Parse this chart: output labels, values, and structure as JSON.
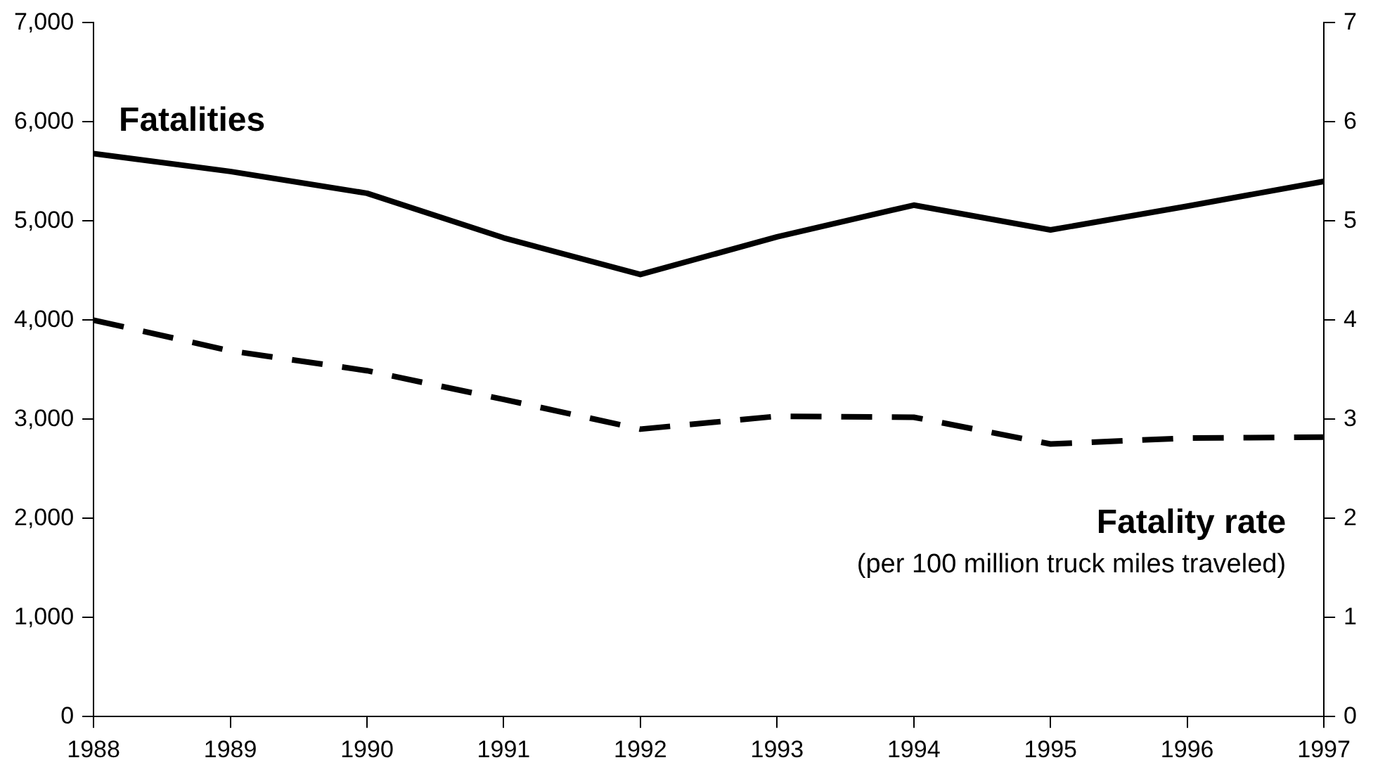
{
  "chart_data": {
    "type": "line",
    "x": [
      1988,
      1989,
      1990,
      1991,
      1992,
      1993,
      1994,
      1995,
      1996,
      1997
    ],
    "xlim": [
      1988,
      1997
    ],
    "xticks": [
      1988,
      1989,
      1990,
      1991,
      1992,
      1993,
      1994,
      1995,
      1996,
      1997
    ],
    "ylim": [
      0,
      7000
    ],
    "yticks": [
      {
        "value": 0,
        "label": "0"
      },
      {
        "value": 1000,
        "label": "1,000"
      },
      {
        "value": 2000,
        "label": "2,000"
      },
      {
        "value": 3000,
        "label": "3,000"
      },
      {
        "value": 4000,
        "label": "4,000"
      },
      {
        "value": 5000,
        "label": "5,000"
      },
      {
        "value": 6000,
        "label": "6,000"
      },
      {
        "value": 7000,
        "label": "7,000"
      }
    ],
    "y2lim": [
      0,
      7
    ],
    "y2ticks": [
      0,
      1,
      2,
      3,
      4,
      5,
      6,
      7
    ],
    "series": [
      {
        "name": "Fatalities",
        "color": "#000000",
        "line_style": "solid",
        "values": [
          5680,
          5500,
          5280,
          4830,
          4460,
          4840,
          5160,
          4910,
          5150,
          5400
        ]
      },
      {
        "name": "Fatality rate",
        "color": "#000000",
        "line_style": "dashed",
        "axis": "y2",
        "values": [
          4.0,
          3.69,
          3.49,
          3.2,
          2.9,
          3.03,
          3.02,
          2.75,
          2.81,
          2.82
        ]
      }
    ],
    "annotations": [
      "(per 100 million truck miles traveled)"
    ],
    "grid": false,
    "legend": false,
    "marker": "none"
  }
}
